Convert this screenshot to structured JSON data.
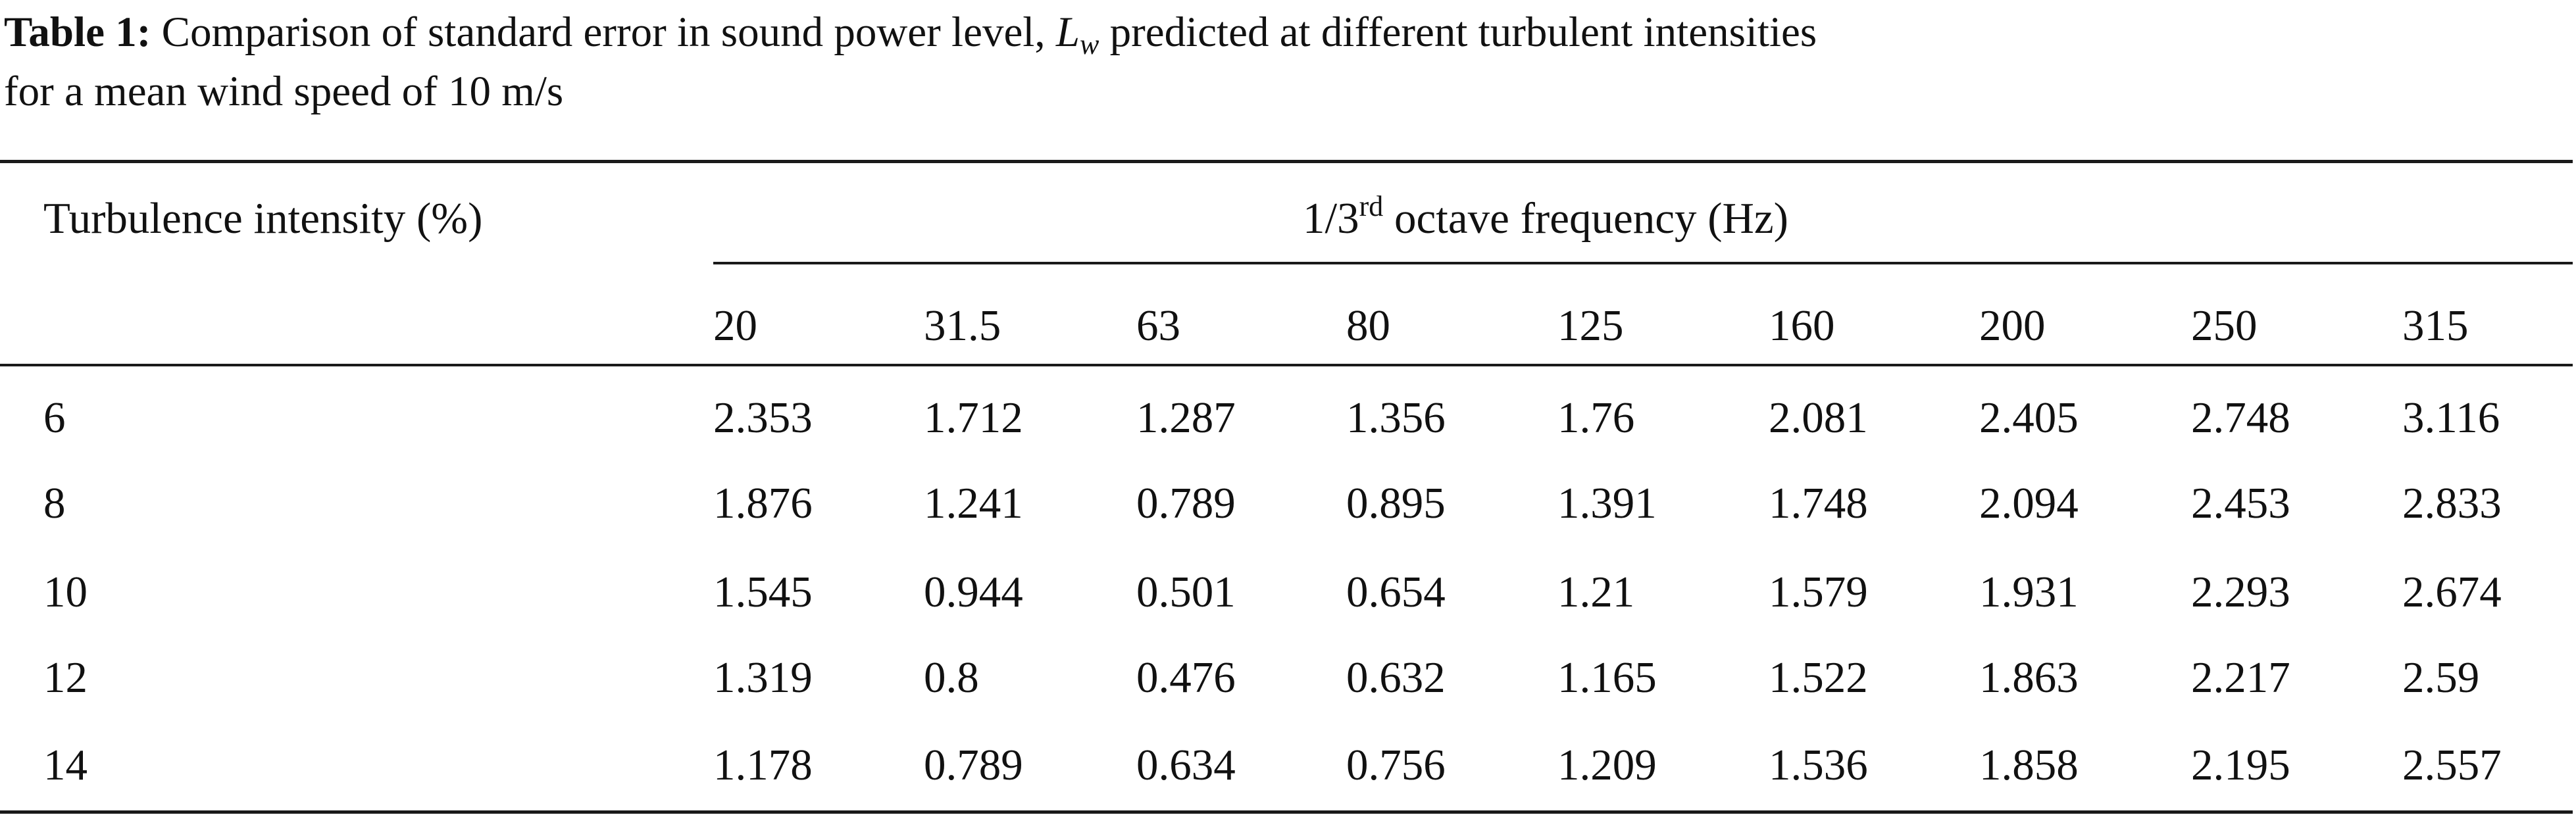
{
  "caption": {
    "label": "Table 1:",
    "text_before": "Comparison of standard error in sound power level,",
    "symbol": "L",
    "symbol_subscript": "w",
    "text_after_line1": "predicted at different turbulent intensities",
    "text_line2": "for a mean wind speed of 10 m/s"
  },
  "table": {
    "row_header": "Turbulence intensity (%)",
    "group_header": {
      "prefix": "1/3",
      "superscript": "rd",
      "suffix": "octave frequency (Hz)"
    },
    "frequencies": [
      "20",
      "31.5",
      "63",
      "80",
      "125",
      "160",
      "200",
      "250",
      "315"
    ],
    "rows": [
      {
        "intensity": "6",
        "values": [
          "2.353",
          "1.712",
          "1.287",
          "1.356",
          "1.76",
          "2.081",
          "2.405",
          "2.748",
          "3.116"
        ]
      },
      {
        "intensity": "8",
        "values": [
          "1.876",
          "1.241",
          "0.789",
          "0.895",
          "1.391",
          "1.748",
          "2.094",
          "2.453",
          "2.833"
        ]
      },
      {
        "intensity": "10",
        "values": [
          "1.545",
          "0.944",
          "0.501",
          "0.654",
          "1.21",
          "1.579",
          "1.931",
          "2.293",
          "2.674"
        ]
      },
      {
        "intensity": "12",
        "values": [
          "1.319",
          "0.8",
          "0.476",
          "0.632",
          "1.165",
          "1.522",
          "1.863",
          "2.217",
          "2.59"
        ]
      },
      {
        "intensity": "14",
        "values": [
          "1.178",
          "0.789",
          "0.634",
          "0.756",
          "1.209",
          "1.536",
          "1.858",
          "2.195",
          "2.557"
        ]
      }
    ]
  }
}
